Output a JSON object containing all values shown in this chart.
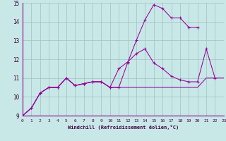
{
  "bg_color": "#c8e8e8",
  "grid_color": "#a0c0c0",
  "line_color": "#990099",
  "xlim": [
    0,
    23
  ],
  "ylim": [
    9,
    15
  ],
  "xticks": [
    0,
    1,
    2,
    3,
    4,
    5,
    6,
    7,
    8,
    9,
    10,
    11,
    12,
    13,
    14,
    15,
    16,
    17,
    18,
    19,
    20,
    21,
    22,
    23
  ],
  "yticks": [
    9,
    10,
    11,
    12,
    13,
    14,
    15
  ],
  "xlabel": "Windchill (Refroidissement éolien,°C)",
  "curve1_x": [
    0,
    1,
    2,
    3,
    4,
    5,
    6,
    7,
    8,
    9,
    10,
    11,
    12,
    13,
    14,
    15,
    16,
    17,
    18,
    19,
    20
  ],
  "curve1_y": [
    9.0,
    9.4,
    10.2,
    10.5,
    10.5,
    11.0,
    10.6,
    10.7,
    10.8,
    10.8,
    10.5,
    10.5,
    11.8,
    13.0,
    14.1,
    14.9,
    14.7,
    14.2,
    14.2,
    13.7,
    13.7
  ],
  "curve2_x": [
    0,
    1,
    2,
    3,
    4,
    5,
    6,
    7,
    8,
    9,
    10,
    11,
    12,
    13,
    14,
    15,
    16,
    17,
    18,
    19,
    20,
    21,
    22
  ],
  "curve2_y": [
    9.0,
    9.4,
    10.2,
    10.5,
    10.5,
    11.0,
    10.6,
    10.7,
    10.8,
    10.8,
    10.5,
    11.5,
    11.85,
    12.3,
    12.55,
    11.8,
    11.5,
    11.1,
    10.9,
    10.8,
    10.8,
    12.55,
    11.0
  ],
  "curve3_x": [
    0,
    1,
    2,
    3,
    4,
    5,
    6,
    7,
    8,
    9,
    10,
    11,
    12,
    13,
    14,
    15,
    16,
    17,
    18,
    19,
    20,
    21,
    22,
    23
  ],
  "curve3_y": [
    9.0,
    9.4,
    10.2,
    10.5,
    10.5,
    11.0,
    10.6,
    10.7,
    10.8,
    10.8,
    10.5,
    10.5,
    10.5,
    10.5,
    10.5,
    10.5,
    10.5,
    10.5,
    10.5,
    10.5,
    10.5,
    11.0,
    11.0,
    11.0
  ]
}
